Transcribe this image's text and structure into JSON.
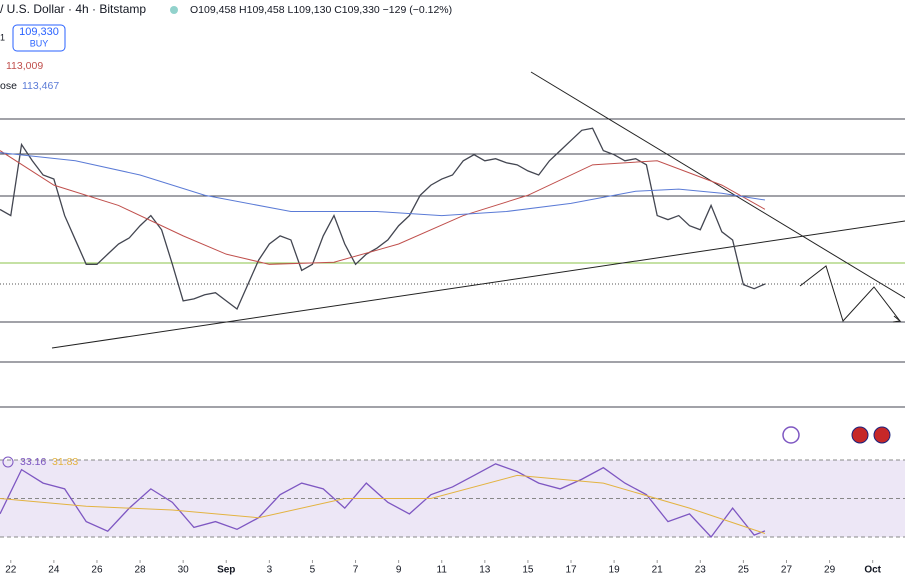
{
  "header": {
    "marker": "1",
    "symbol": "/ U.S. Dollar · 4h · Bitstamp",
    "ohlc": "O109,458 H109,458 L109,130 C109,330 −129 (−0.12%)",
    "buy_price": "109,330",
    "buy_label": "BUY"
  },
  "chart_data": [
    {
      "type": "line",
      "ylim": [
        103125,
        123317
      ],
      "xlim": [
        -0.5,
        41.5
      ],
      "xticks": [
        {
          "value": 0,
          "label": "22"
        },
        {
          "value": 2,
          "label": "24"
        },
        {
          "value": 4,
          "label": "26"
        },
        {
          "value": 6,
          "label": "28"
        },
        {
          "value": 8,
          "label": "30"
        },
        {
          "value": 10,
          "label": "Sep"
        },
        {
          "value": 12,
          "label": "3"
        },
        {
          "value": 14,
          "label": "5"
        },
        {
          "value": 16,
          "label": "7"
        },
        {
          "value": 18,
          "label": "9"
        },
        {
          "value": 20,
          "label": "11"
        },
        {
          "value": 22,
          "label": "13"
        },
        {
          "value": 24,
          "label": "15"
        },
        {
          "value": 26,
          "label": "17"
        },
        {
          "value": 28,
          "label": "19"
        },
        {
          "value": 30,
          "label": "21"
        },
        {
          "value": 32,
          "label": "23"
        },
        {
          "value": 34,
          "label": "25"
        },
        {
          "value": 36,
          "label": "27"
        },
        {
          "value": 38,
          "label": "29"
        },
        {
          "value": 40,
          "label": "Oct"
        }
      ],
      "series": [
        {
          "color": "#434651",
          "x": [
            -0.5,
            0,
            0.5,
            1,
            1.5,
            2,
            2.5,
            3,
            3.5,
            4,
            4.5,
            5,
            5.5,
            6,
            6.5,
            7,
            7.5,
            8,
            8.5,
            9,
            9.5,
            10,
            10.5,
            11,
            11.5,
            12,
            12.5,
            13,
            13.5,
            14,
            14.5,
            15,
            15.5,
            16,
            16.5,
            17,
            17.5,
            18,
            18.5,
            19,
            19.5,
            20,
            20.5,
            21,
            21.5,
            22,
            22.5,
            23,
            23.5,
            24,
            24.5,
            25,
            25.5,
            26,
            26.5,
            27,
            27.5,
            28,
            28.5,
            29,
            29.5,
            30,
            30.5,
            31,
            31.5,
            32,
            32.5,
            33,
            33.5,
            34,
            34.5,
            35
          ],
          "values": [
            113000,
            112700,
            116200,
            115400,
            114700,
            114500,
            112700,
            111500,
            110300,
            110300,
            110800,
            111300,
            111600,
            112200,
            112700,
            112000,
            110300,
            108500,
            108600,
            108800,
            108900,
            108500,
            108100,
            109300,
            110500,
            111300,
            111700,
            111500,
            110000,
            110300,
            111700,
            112700,
            111300,
            110300,
            110800,
            111100,
            111500,
            112200,
            112700,
            113700,
            114200,
            114500,
            114700,
            115400,
            115700,
            115400,
            115500,
            115300,
            115200,
            114900,
            114700,
            115400,
            115900,
            116400,
            116900,
            117000,
            115900,
            115700,
            115400,
            115500,
            115200,
            112700,
            112500,
            112700,
            112200,
            112000,
            113200,
            111900,
            111500,
            109300,
            109100,
            109330
          ]
        },
        {
          "color": "#c0504d",
          "value_label": "113,009",
          "x": [
            -0.5,
            2,
            5,
            8,
            10,
            12,
            15,
            18,
            21,
            24,
            27,
            30,
            33,
            35
          ],
          "values": [
            115900,
            114200,
            113200,
            111700,
            110800,
            110300,
            110400,
            111300,
            112700,
            113700,
            115200,
            115400,
            114200,
            113009
          ]
        },
        {
          "name": "ose",
          "color": "#5b7bd6",
          "value_label": "113,467",
          "x": [
            -0.5,
            3,
            6,
            9,
            13,
            17,
            20,
            23,
            26,
            29,
            31,
            33,
            35
          ],
          "values": [
            115800,
            115400,
            114700,
            113700,
            112900,
            112900,
            112700,
            112900,
            113300,
            113900,
            114000,
            113800,
            113467
          ]
        }
      ]
    },
    {
      "type": "line",
      "levels": [
        70,
        50,
        30
      ],
      "series": [
        {
          "color": "#7e57c2",
          "value_label": "33.16",
          "x": [
            -0.5,
            0.5,
            1.5,
            2.5,
            3.5,
            4.5,
            5.5,
            6.5,
            7.5,
            8.5,
            9.5,
            10.5,
            11.5,
            12.5,
            13.5,
            14.5,
            15.5,
            16.5,
            17.5,
            18.5,
            19.5,
            20.5,
            21.5,
            22.5,
            23.5,
            24.5,
            25.5,
            26.5,
            27.5,
            28.5,
            29.5,
            30.5,
            31.5,
            32.5,
            33.5,
            34.5,
            35
          ],
          "values": [
            42,
            65,
            58,
            55,
            38,
            33,
            45,
            55,
            48,
            35,
            38,
            34,
            40,
            52,
            58,
            55,
            45,
            58,
            48,
            42,
            52,
            56,
            62,
            68,
            64,
            58,
            55,
            60,
            66,
            58,
            52,
            38,
            42,
            30,
            45,
            31,
            33.16
          ]
        },
        {
          "color": "#e3b341",
          "value_label": "31.83",
          "x": [
            -0.5,
            3.5,
            7.5,
            11.5,
            15.5,
            19.5,
            23.5,
            27.5,
            31.5,
            35
          ],
          "values": [
            50,
            46,
            44,
            40,
            50,
            50,
            62,
            58,
            45,
            31.83
          ]
        }
      ]
    }
  ]
}
